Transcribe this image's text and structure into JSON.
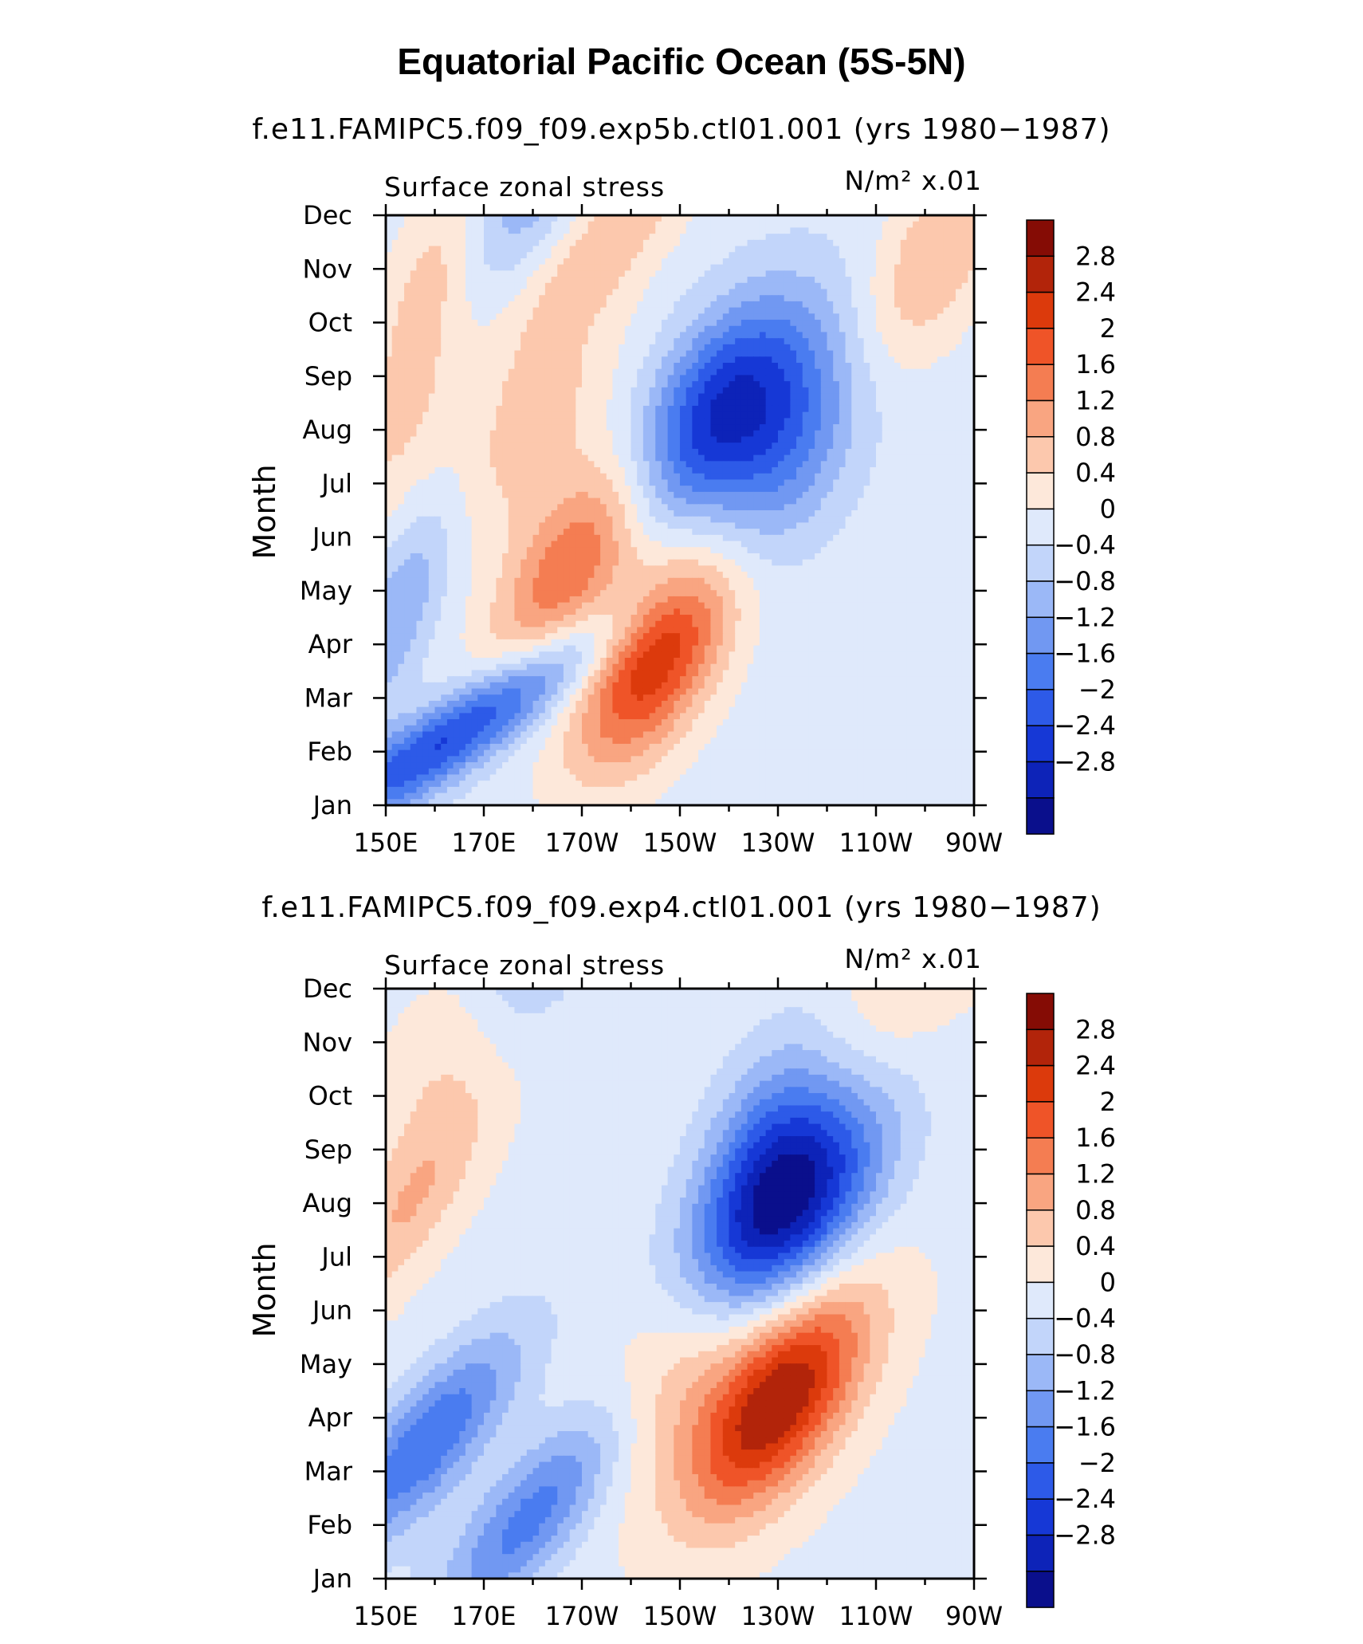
{
  "title": "Equatorial Pacific Ocean (5S-5N)",
  "colors": {
    "levels": [
      -2.8,
      -2.4,
      -2,
      -1.6,
      -1.2,
      -0.8,
      -0.4,
      0,
      0.4,
      0.8,
      1.2,
      1.6,
      2,
      2.4,
      2.8
    ],
    "fills": [
      "#0a0f8c",
      "#0d23b8",
      "#1638d6",
      "#2d5ae8",
      "#4a7cf0",
      "#7198f2",
      "#9bb8f7",
      "#c2d5fa",
      "#dfe9fb",
      "#fde8da",
      "#fcc8ad",
      "#f9a581",
      "#f47d52",
      "#ef5428",
      "#dc3a0c",
      "#b2240a",
      "#850c05"
    ]
  },
  "chart_data": [
    {
      "type": "heatmap",
      "subtitle": "f.e11.FAMIPC5.f09_f09.exp5b.ctl01.001 (yrs 1980−1987)",
      "variable_label": "Surface zonal stress",
      "units_label": "N/m² x.01",
      "ylabel": "Month",
      "xlabel": "",
      "x_ticks": [
        "150E",
        "170E",
        "170W",
        "150W",
        "130W",
        "110W",
        "90W"
      ],
      "y_ticks": [
        "Jan",
        "Feb",
        "Mar",
        "Apr",
        "May",
        "Jun",
        "Jul",
        "Aug",
        "Sep",
        "Oct",
        "Nov",
        "Dec"
      ],
      "colorbar_labels": [
        "2.8",
        "2.4",
        "2",
        "1.6",
        "1.2",
        "0.8",
        "0.4",
        "0",
        "−0.4",
        "−0.8",
        "−1.2",
        "−1.6",
        "−2",
        "−2.4",
        "−2.8"
      ],
      "x_axis": "longitude (degrees east, 150E to 90W)",
      "xlim": [
        150,
        270
      ],
      "y_axis": "month",
      "grid": false,
      "features": [
        {
          "x": 205,
          "y": 2.8,
          "v": 2.6,
          "s": 13,
          "t": 0.55
        },
        {
          "x": 188,
          "y": 4.5,
          "v": 1.8,
          "s": 12,
          "t": 0.7
        },
        {
          "x": 180,
          "y": 7,
          "v": 0.8,
          "s": 14,
          "t": 0.5
        },
        {
          "x": 152,
          "y": 7,
          "v": 0.6,
          "s": 10,
          "t": 0.6
        },
        {
          "x": 218,
          "y": 7.4,
          "v": -2.5,
          "s": 15,
          "t": 0.5
        },
        {
          "x": 232,
          "y": 6.7,
          "v": -1.4,
          "s": 14,
          "t": 0.4
        },
        {
          "x": 164,
          "y": 1.3,
          "v": -2.3,
          "s": 13,
          "t": 1.8
        },
        {
          "x": 152,
          "y": 3.5,
          "v": -1.0,
          "s": 8,
          "t": 0.8
        },
        {
          "x": 180,
          "y": 11.8,
          "v": -1.0,
          "s": 12,
          "t": 0.6
        },
        {
          "x": 195,
          "y": 10.5,
          "v": 0.9,
          "s": 12,
          "t": 1.0
        },
        {
          "x": 262,
          "y": 10.2,
          "v": 1.0,
          "s": 12,
          "t": 0.6
        },
        {
          "x": 160,
          "y": 10,
          "v": 0.8,
          "s": 9,
          "t": 0.6
        }
      ],
      "base_value": 0.2
    },
    {
      "type": "heatmap",
      "subtitle": "f.e11.FAMIPC5.f09_f09.exp4.ctl01.001 (yrs 1980−1987)",
      "variable_label": "Surface zonal stress",
      "units_label": "N/m² x.01",
      "ylabel": "Month",
      "xlabel": "",
      "x_ticks": [
        "150E",
        "170E",
        "170W",
        "150W",
        "130W",
        "110W",
        "90W"
      ],
      "y_ticks": [
        "Jan",
        "Feb",
        "Mar",
        "Apr",
        "May",
        "Jun",
        "Jul",
        "Aug",
        "Sep",
        "Oct",
        "Nov",
        "Dec"
      ],
      "colorbar_labels": [
        "2.8",
        "2.4",
        "2",
        "1.6",
        "1.2",
        "0.8",
        "0.4",
        "0",
        "−0.4",
        "−0.8",
        "−1.2",
        "−1.6",
        "−2",
        "−2.4",
        "−2.8"
      ],
      "x_axis": "longitude (degrees east, 150E to 90W)",
      "xlim": [
        150,
        270
      ],
      "y_axis": "month",
      "grid": false,
      "features": [
        {
          "x": 230,
          "y": 3.3,
          "v": 3.0,
          "s": 14,
          "t": 0.6
        },
        {
          "x": 210,
          "y": 4.0,
          "v": 0.9,
          "s": 14,
          "t": 0.6
        },
        {
          "x": 232,
          "y": 6.9,
          "v": -3.1,
          "s": 16,
          "t": 0.5
        },
        {
          "x": 228,
          "y": 8.3,
          "v": -1.2,
          "s": 13,
          "t": 0.4
        },
        {
          "x": 158,
          "y": 2.5,
          "v": -1.9,
          "s": 12,
          "t": 1.0
        },
        {
          "x": 180,
          "y": 1.2,
          "v": -1.7,
          "s": 12,
          "t": 1.0
        },
        {
          "x": 155,
          "y": 7,
          "v": 0.9,
          "s": 10,
          "t": 1.0
        },
        {
          "x": 165,
          "y": 10,
          "v": 0.6,
          "s": 12,
          "t": 0.7
        },
        {
          "x": 180,
          "y": 11.8,
          "v": -1.0,
          "s": 12,
          "t": 0.6
        },
        {
          "x": 255,
          "y": 11,
          "v": 0.5,
          "s": 14,
          "t": 0.7
        }
      ],
      "base_value": 0.3
    }
  ]
}
